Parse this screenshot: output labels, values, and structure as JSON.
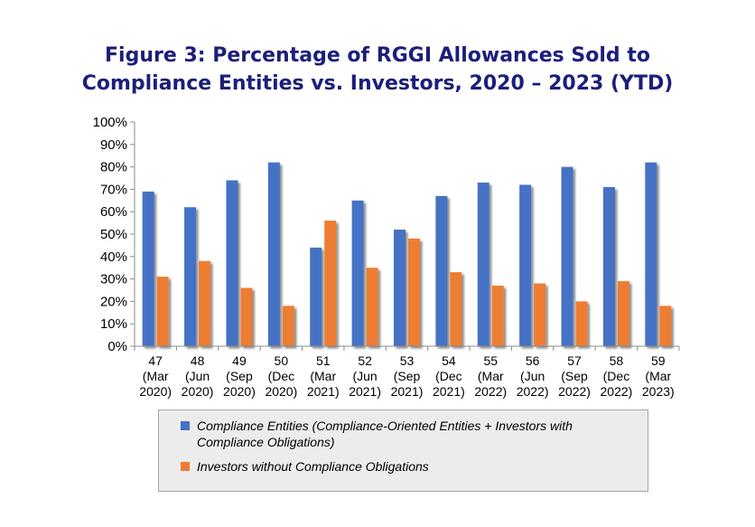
{
  "colors": {
    "compliance": "#4472c4",
    "investors": "#ed7d31",
    "title": "#1b1f7a"
  },
  "title_lines": [
    "Figure 3: Percentage of RGGI Allowances Sold to",
    "Compliance Entities vs. Investors, 2020 – 2023 (YTD)"
  ],
  "legend": [
    "Compliance Entities (Compliance-Oriented Entities + Investors with Compliance Obligations)",
    "Investors without Compliance Obligations"
  ],
  "chart_data": {
    "type": "bar",
    "title": "Figure 3: Percentage of RGGI Allowances Sold to Compliance Entities vs. Investors, 2020 – 2023 (YTD)",
    "xlabel": "",
    "ylabel": "",
    "ylim": [
      0,
      100
    ],
    "yticks": [
      "0%",
      "10%",
      "20%",
      "30%",
      "40%",
      "50%",
      "60%",
      "70%",
      "80%",
      "90%",
      "100%"
    ],
    "grid": false,
    "legend_position": "bottom",
    "categories": [
      [
        "47",
        "(Mar",
        "2020)"
      ],
      [
        "48",
        "(Jun",
        "2020)"
      ],
      [
        "49",
        "(Sep",
        "2020)"
      ],
      [
        "50",
        "(Dec",
        "2020)"
      ],
      [
        "51",
        "(Mar",
        "2021)"
      ],
      [
        "52",
        "(Jun",
        "2021)"
      ],
      [
        "53",
        "(Sep",
        "2021)"
      ],
      [
        "54",
        "(Dec",
        "2021)"
      ],
      [
        "55",
        "(Mar",
        "2022)"
      ],
      [
        "56",
        "(Jun",
        "2022)"
      ],
      [
        "57",
        "(Sep",
        "2022)"
      ],
      [
        "58",
        "(Dec",
        "2022)"
      ],
      [
        "59",
        "(Mar",
        "2023)"
      ]
    ],
    "series": [
      {
        "name": "Compliance Entities (Compliance-Oriented Entities + Investors with Compliance Obligations)",
        "values": [
          69,
          62,
          74,
          82,
          44,
          65,
          52,
          67,
          73,
          72,
          80,
          71,
          82
        ]
      },
      {
        "name": "Investors without Compliance Obligations",
        "values": [
          31,
          38,
          26,
          18,
          56,
          35,
          48,
          33,
          27,
          28,
          20,
          29,
          18
        ]
      }
    ]
  }
}
